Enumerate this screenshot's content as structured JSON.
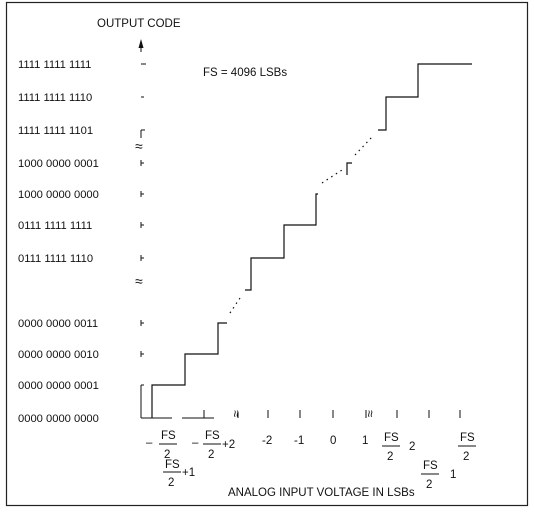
{
  "figure": {
    "y_axis_title": "OUTPUT CODE",
    "x_axis_title": "ANALOG INPUT VOLTAGE IN LSBs",
    "annotation": "FS = 4096 LSBs",
    "axis_break_symbol": "≈",
    "output_codes": [
      "1111 1111 1111",
      "1111 1111 1110",
      "1111 1111 1101",
      "1000 0000 0001",
      "1000 0000 0000",
      "0111 1111 1111",
      "0111 1111 1110",
      "0000 0000 0011",
      "0000 0000 0010",
      "0000 0000 0001",
      "0000 0000 0000"
    ],
    "x_ticks": {
      "neg_fs_half": {
        "sign": "–",
        "num": "FS",
        "den": "2"
      },
      "neg_fs_half_plus_1": {
        "num": "FS",
        "den": "2",
        "suffix": "+1"
      },
      "neg_fs_half_plus_2": {
        "sign": "–",
        "num": "FS",
        "den": "2",
        "suffix": "+2"
      },
      "minus_two": "-2",
      "minus_one": "-1",
      "zero": "0",
      "one": "1",
      "fs_half_minus_2": {
        "num": "FS",
        "den": "2",
        "suffix": "2"
      },
      "fs_half_minus_1": {
        "num": "FS",
        "den": "2",
        "suffix": "1"
      },
      "fs_half": {
        "num": "FS",
        "den": "2"
      }
    },
    "colors": {
      "ink": "#111111",
      "background": "#ffffff",
      "frame": "#222222"
    }
  }
}
